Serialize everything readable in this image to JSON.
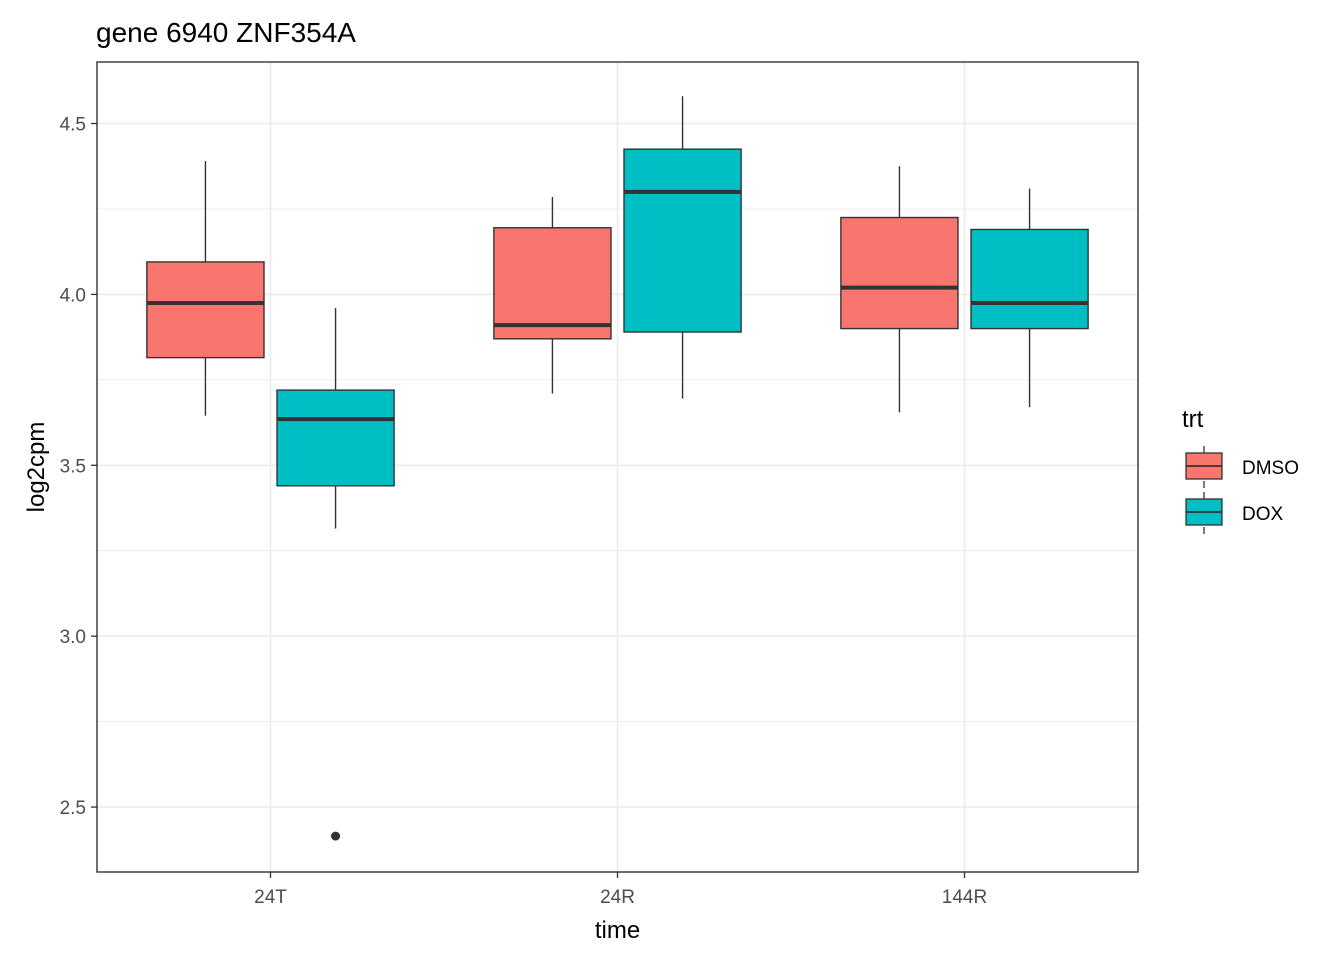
{
  "chart_data": {
    "type": "boxplot",
    "title": "gene 6940 ZNF354A",
    "xlabel": "time",
    "ylabel": "log2cpm",
    "categories": [
      "24T",
      "24R",
      "144R"
    ],
    "ylim": [
      2.31,
      4.68
    ],
    "yticks": [
      2.5,
      3.0,
      3.5,
      4.0,
      4.5
    ],
    "ytick_labels": [
      "2.5",
      "3.0",
      "3.5",
      "4.0",
      "4.5"
    ],
    "grid": true,
    "legend": {
      "title": "trt",
      "position": "right",
      "entries": [
        {
          "name": "DMSO",
          "color": "#F8766D"
        },
        {
          "name": "DOX",
          "color": "#00BFC4"
        }
      ]
    },
    "series": [
      {
        "name": "DMSO",
        "color": "#F8766D",
        "boxes": [
          {
            "category": "24T",
            "whisker_low": 3.645,
            "q1": 3.815,
            "median": 3.975,
            "q3": 4.095,
            "whisker_high": 4.39,
            "outliers": []
          },
          {
            "category": "24R",
            "whisker_low": 3.71,
            "q1": 3.87,
            "median": 3.91,
            "q3": 4.195,
            "whisker_high": 4.285,
            "outliers": []
          },
          {
            "category": "144R",
            "whisker_low": 3.655,
            "q1": 3.9,
            "median": 4.02,
            "q3": 4.225,
            "whisker_high": 4.375,
            "outliers": []
          }
        ]
      },
      {
        "name": "DOX",
        "color": "#00BFC4",
        "boxes": [
          {
            "category": "24T",
            "whisker_low": 3.315,
            "q1": 3.44,
            "median": 3.635,
            "q3": 3.72,
            "whisker_high": 3.96,
            "outliers": [
              2.415
            ]
          },
          {
            "category": "24R",
            "whisker_low": 3.695,
            "q1": 3.89,
            "median": 4.3,
            "q3": 4.425,
            "whisker_high": 4.58,
            "outliers": []
          },
          {
            "category": "144R",
            "whisker_low": 3.67,
            "q1": 3.9,
            "median": 3.975,
            "q3": 4.19,
            "whisker_high": 4.31,
            "outliers": []
          }
        ]
      }
    ]
  }
}
